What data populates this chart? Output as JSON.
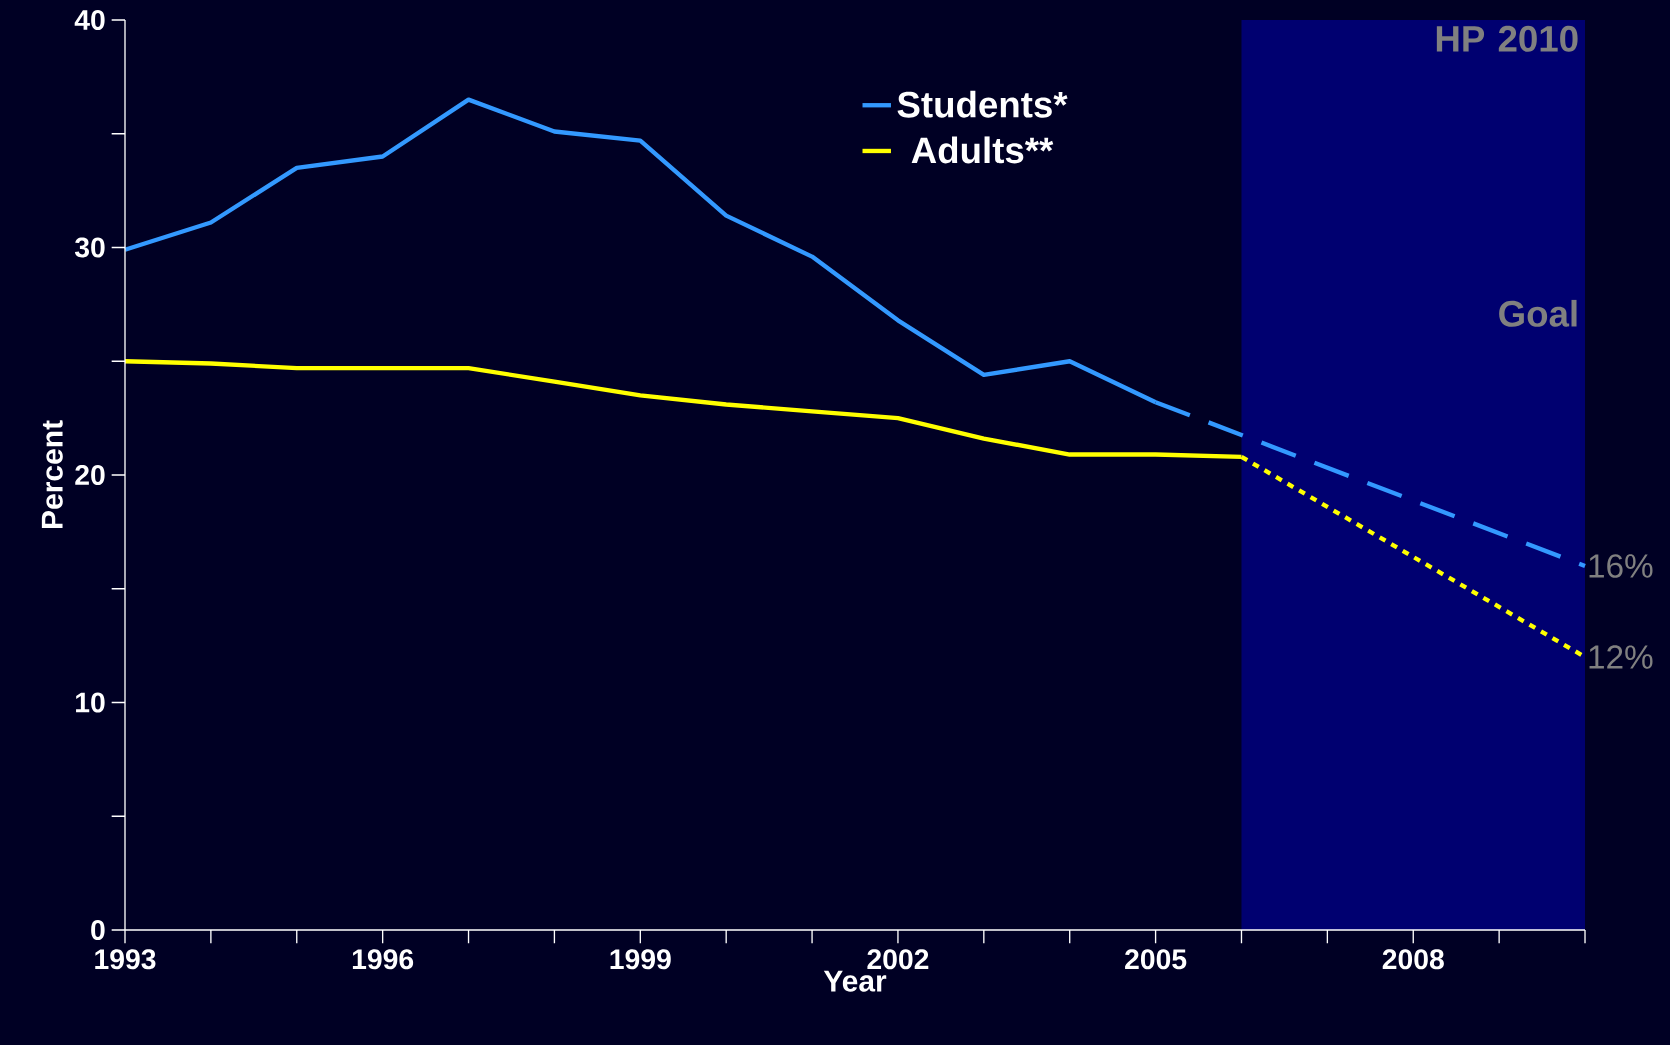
{
  "chart_data": {
    "type": "line",
    "xlabel": "Year",
    "ylabel": "Percent",
    "xlim": [
      1993,
      2010
    ],
    "ylim": [
      0,
      40
    ],
    "xticks": [
      1993,
      {
        "value": 1994,
        "label": null
      },
      {
        "value": 1995,
        "label": null
      },
      1996,
      {
        "value": 1997,
        "label": null
      },
      {
        "value": 1998,
        "label": null
      },
      1999,
      {
        "value": 2000,
        "label": null
      },
      {
        "value": 2001,
        "label": null
      },
      2002,
      {
        "value": 2003,
        "label": null
      },
      {
        "value": 2004,
        "label": null
      },
      2005,
      {
        "value": 2006,
        "label": null
      },
      {
        "value": 2007,
        "label": null
      },
      2008,
      {
        "value": 2009,
        "label": null
      },
      {
        "value": 2010,
        "label": null
      }
    ],
    "yticks": [
      0,
      {
        "value": 5,
        "label": null
      },
      10,
      {
        "value": 15,
        "label": null
      },
      20,
      {
        "value": 25,
        "label": null
      },
      30,
      {
        "value": 35,
        "label": null
      },
      40
    ],
    "series": [
      {
        "name": "Students*",
        "color": "#3399ff",
        "line_style": "solid",
        "x": [
          1993,
          1994,
          1995,
          1996,
          1997,
          1998,
          1999,
          2000,
          2001,
          2002,
          2003,
          2004,
          2005
        ],
        "values": [
          29.9,
          31.1,
          33.5,
          34.0,
          36.5,
          35.1,
          34.7,
          31.4,
          29.6,
          26.8,
          24.4,
          25.0,
          23.2
        ]
      },
      {
        "color": "#3399ff",
        "line_style": "dashed",
        "x": [
          2005,
          2010
        ],
        "values": [
          23.2,
          16
        ]
      },
      {
        "name": "Adults**",
        "color": "#ffff00",
        "line_style": "solid",
        "x": [
          1993,
          1994,
          1995,
          1996,
          1997,
          1998,
          1999,
          2000,
          2001,
          2002,
          2003,
          2004,
          2005,
          2006
        ],
        "values": [
          25.0,
          24.9,
          24.7,
          24.7,
          24.7,
          24.1,
          23.5,
          23.1,
          22.8,
          22.5,
          21.6,
          20.9,
          20.9,
          20.8
        ]
      },
      {
        "color": "#ffff00",
        "line_style": "dotted",
        "x": [
          2006,
          2010
        ],
        "values": [
          20.8,
          12
        ]
      }
    ],
    "bands": [
      {
        "axis": "x",
        "from": 2006,
        "to": 2010,
        "label": "HP 2010 Goal",
        "color": "#000070"
      }
    ],
    "annotations": [
      {
        "text": "16%",
        "x": 2010,
        "y": 16
      },
      {
        "text": "12%",
        "x": 2010,
        "y": 12
      }
    ],
    "legend": "top",
    "grid": false,
    "marker": "none"
  }
}
